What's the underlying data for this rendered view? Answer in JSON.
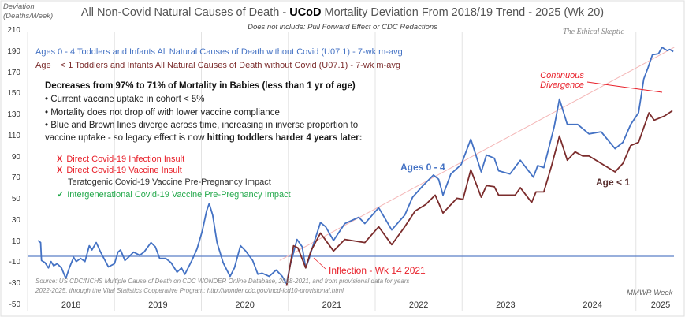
{
  "title": {
    "pre": "All Non-Covid Natural Causes of Death - ",
    "bold": "UCoD",
    "post": " Mortality Deviation From 2018/19 Trend - 2025 (Wk 20)"
  },
  "subtitle": "Does not include: Pull Forward Effect or CDC Redactions",
  "watermark": "The Ethical Skeptic",
  "legend": [
    "Ages 0 - 4 Toddlers and Infants All Natural Causes of Death without Covid (U07.1) - 7-wk m-avg",
    "Age    < 1 Toddlers and Infants All Natural Causes of Death without Covid (U07.1) - 7-wk m-avg"
  ],
  "textbox": {
    "heading": "Decreases from 97% to 71% of Mortality in Babies (less than 1 yr of age)",
    "bullets": [
      "• Current vaccine uptake in cohort  < 5%",
      "• Mortality does not drop off with lower vaccine compliance",
      "• Blue and Brown  lines diverge across time, increasing in inverse proportion  to"
    ],
    "bullet_cont": "vaccine uptake  - so legacy effect is now ",
    "bullet_cont_bold": "hitting toddlers harder 4 years later:",
    "items": [
      {
        "mark": "X",
        "text": "Direct Covid-19 Infection Insult",
        "status": "rejected"
      },
      {
        "mark": "X",
        "text": "Direct Covid-19 Vaccine Insult",
        "status": "rejected"
      },
      {
        "mark": "",
        "text": "Teratogenic Covid-19 Vaccine Pre-Pregnancy Impact",
        "status": "neutral"
      },
      {
        "mark": "✓",
        "text": "Intergenerational Covid-19 Vaccine Pre-Pregnancy Impact",
        "status": "accepted"
      }
    ]
  },
  "annotations": {
    "ages04": "Ages  0 - 4",
    "age1": "Age  < 1",
    "inflection": "Inflection - Wk 14 2021",
    "divergence1": "Continuous",
    "divergence2": "Divergence"
  },
  "source1": "Source: US CDC/NCHS Multiple Cause of Death on CDC WONDER Online Database, 2018-2021, and from provisional data for years",
  "source2": "2022-2025, through the Vital Statistics Cooperative Program; http://wonder.cdc.gov/mcd-icd10-provisional.html",
  "colors": {
    "blue": "#4472c4",
    "brown": "#7b2c2c",
    "red": "#e8202a",
    "green": "#22a84a",
    "trend": "#f4b6b6",
    "baseline": "#5b7fc7"
  },
  "chart_data": {
    "type": "line",
    "title": "All Non-Covid Natural Causes of Death - UCoD Mortality Deviation From 2018/19 Trend - 2025 (Wk 20)",
    "ylabel": "Deviation (Deaths/Week)",
    "xlabel": "MMWR Week",
    "ylim": [
      -50,
      210
    ],
    "xlim": [
      2018.0,
      2025.44
    ],
    "yticks": [
      "210",
      "190",
      "170",
      "150",
      "130",
      "110",
      "90",
      "70",
      "50",
      "30",
      "10",
      "-10",
      "-30",
      "-50"
    ],
    "xticks": [
      "2018",
      "2019",
      "2020",
      "2021",
      "2022",
      "2023",
      "2024",
      "2025"
    ],
    "grid": "vertical",
    "baseline": -3,
    "series": [
      {
        "name": "Ages 0 - 4 (7-wk m-avg)",
        "color": "#4472c4",
        "points": [
          [
            2018.12,
            12
          ],
          [
            2018.15,
            10
          ],
          [
            2018.16,
            -7
          ],
          [
            2018.2,
            -9
          ],
          [
            2018.24,
            -14
          ],
          [
            2018.27,
            -8
          ],
          [
            2018.3,
            -12
          ],
          [
            2018.34,
            -10
          ],
          [
            2018.39,
            -14
          ],
          [
            2018.44,
            -24
          ],
          [
            2018.48,
            -14
          ],
          [
            2018.53,
            -4
          ],
          [
            2018.56,
            -8
          ],
          [
            2018.61,
            -5
          ],
          [
            2018.66,
            -8
          ],
          [
            2018.71,
            7
          ],
          [
            2018.74,
            3
          ],
          [
            2018.79,
            10
          ],
          [
            2018.84,
            1
          ],
          [
            2018.93,
            -13
          ],
          [
            2019.0,
            -10
          ],
          [
            2019.04,
            1
          ],
          [
            2019.07,
            3
          ],
          [
            2019.12,
            -7
          ],
          [
            2019.16,
            -4
          ],
          [
            2019.22,
            1
          ],
          [
            2019.29,
            -2
          ],
          [
            2019.34,
            1
          ],
          [
            2019.42,
            10
          ],
          [
            2019.47,
            6
          ],
          [
            2019.52,
            -5
          ],
          [
            2019.59,
            -5
          ],
          [
            2019.65,
            -9
          ],
          [
            2019.72,
            -18
          ],
          [
            2019.77,
            -14
          ],
          [
            2019.81,
            -20
          ],
          [
            2019.89,
            -7
          ],
          [
            2019.95,
            4
          ],
          [
            2020.01,
            21
          ],
          [
            2020.06,
            40
          ],
          [
            2020.09,
            47
          ],
          [
            2020.13,
            36
          ],
          [
            2020.18,
            10
          ],
          [
            2020.25,
            -9
          ],
          [
            2020.33,
            -22
          ],
          [
            2020.38,
            -14
          ],
          [
            2020.45,
            7
          ],
          [
            2020.51,
            2
          ],
          [
            2020.59,
            -7
          ],
          [
            2020.65,
            -20
          ],
          [
            2020.7,
            -19
          ],
          [
            2020.78,
            -22
          ],
          [
            2020.86,
            -16
          ],
          [
            2020.93,
            -22
          ],
          [
            2020.98,
            -29
          ],
          [
            2021.02,
            -12
          ],
          [
            2021.1,
            13
          ],
          [
            2021.16,
            6
          ],
          [
            2021.2,
            -14
          ],
          [
            2021.24,
            -5
          ],
          [
            2021.28,
            6
          ],
          [
            2021.37,
            29
          ],
          [
            2021.43,
            25
          ],
          [
            2021.52,
            12
          ],
          [
            2021.65,
            28
          ],
          [
            2021.81,
            34
          ],
          [
            2021.88,
            28
          ],
          [
            2022.04,
            43
          ],
          [
            2022.19,
            22
          ],
          [
            2022.34,
            36
          ],
          [
            2022.43,
            53
          ],
          [
            2022.55,
            64
          ],
          [
            2022.67,
            74
          ],
          [
            2022.73,
            70
          ],
          [
            2022.78,
            55
          ],
          [
            2022.87,
            75
          ],
          [
            2022.99,
            84
          ],
          [
            2023.1,
            108
          ],
          [
            2023.22,
            77
          ],
          [
            2023.28,
            93
          ],
          [
            2023.37,
            90
          ],
          [
            2023.42,
            78
          ],
          [
            2023.55,
            75
          ],
          [
            2023.67,
            88
          ],
          [
            2023.82,
            72
          ],
          [
            2023.87,
            83
          ],
          [
            2023.94,
            81
          ],
          [
            2024.06,
            120
          ],
          [
            2024.12,
            146
          ],
          [
            2024.21,
            122
          ],
          [
            2024.33,
            122
          ],
          [
            2024.46,
            113
          ],
          [
            2024.6,
            115
          ],
          [
            2024.76,
            99
          ],
          [
            2024.85,
            105
          ],
          [
            2024.94,
            122
          ],
          [
            2025.03,
            133
          ],
          [
            2025.09,
            165
          ],
          [
            2025.14,
            176
          ],
          [
            2025.19,
            188
          ],
          [
            2025.26,
            189
          ],
          [
            2025.3,
            195
          ],
          [
            2025.36,
            192
          ],
          [
            2025.39,
            193
          ],
          [
            2025.43,
            191
          ]
        ]
      },
      {
        "name": "Age < 1 (7-wk m-avg)",
        "color": "#7b2c2c",
        "points": [
          [
            2020.98,
            -31
          ],
          [
            2021.06,
            7
          ],
          [
            2021.11,
            5
          ],
          [
            2021.2,
            -14
          ],
          [
            2021.26,
            2
          ],
          [
            2021.37,
            19
          ],
          [
            2021.52,
            2
          ],
          [
            2021.65,
            13
          ],
          [
            2021.88,
            10
          ],
          [
            2022.04,
            25
          ],
          [
            2022.19,
            8
          ],
          [
            2022.34,
            25
          ],
          [
            2022.46,
            40
          ],
          [
            2022.58,
            46
          ],
          [
            2022.69,
            55
          ],
          [
            2022.78,
            38
          ],
          [
            2022.94,
            52
          ],
          [
            2023.01,
            51
          ],
          [
            2023.1,
            79
          ],
          [
            2023.22,
            53
          ],
          [
            2023.28,
            64
          ],
          [
            2023.37,
            63
          ],
          [
            2023.42,
            55
          ],
          [
            2023.61,
            55
          ],
          [
            2023.67,
            62
          ],
          [
            2023.8,
            48
          ],
          [
            2023.85,
            58
          ],
          [
            2023.94,
            58
          ],
          [
            2024.03,
            83
          ],
          [
            2024.12,
            111
          ],
          [
            2024.21,
            88
          ],
          [
            2024.3,
            96
          ],
          [
            2024.39,
            92
          ],
          [
            2024.46,
            92
          ],
          [
            2024.6,
            85
          ],
          [
            2024.76,
            77
          ],
          [
            2024.85,
            85
          ],
          [
            2024.94,
            102
          ],
          [
            2025.03,
            105
          ],
          [
            2025.15,
            133
          ],
          [
            2025.21,
            126
          ],
          [
            2025.33,
            130
          ],
          [
            2025.42,
            135
          ]
        ]
      },
      {
        "name": "Trend",
        "color": "#f4b6b6",
        "points": [
          [
            2020.9,
            -7
          ],
          [
            2025.44,
            195
          ]
        ]
      }
    ]
  }
}
